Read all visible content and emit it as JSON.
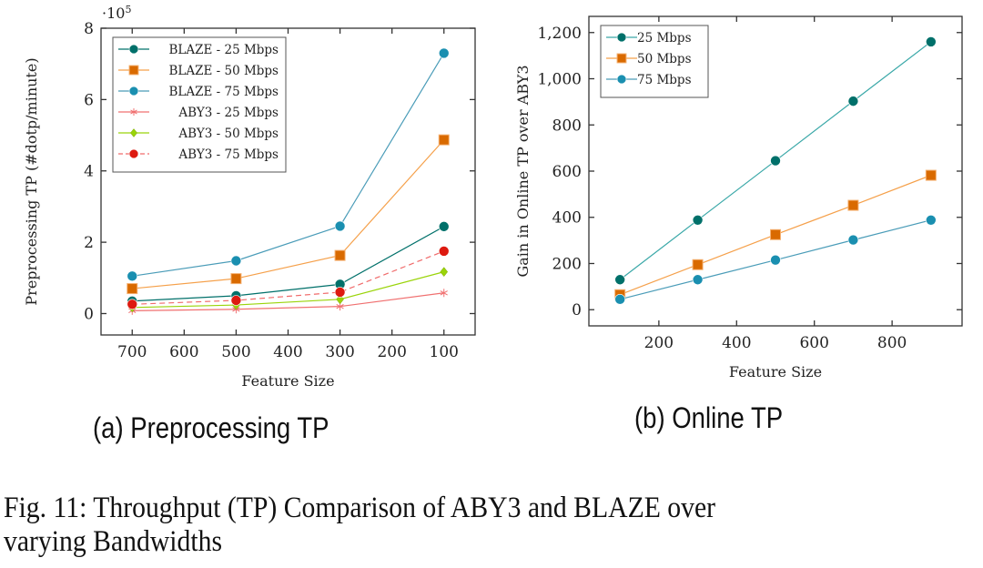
{
  "chart_data": [
    {
      "type": "line",
      "title": "",
      "xlabel": "Feature Size",
      "ylabel": "Preprocessing TP (#dotp/minute)",
      "y_multiplier_label": "·10^5",
      "y_multiplier_base": "·10",
      "y_multiplier_exp": "5",
      "x": [
        700,
        500,
        300,
        100
      ],
      "x_reversed": true,
      "xlim": [
        760,
        40
      ],
      "xticks": [
        700,
        600,
        500,
        400,
        300,
        200,
        100
      ],
      "ylim": [
        -0.6,
        8
      ],
      "yticks": [
        0,
        2,
        4,
        6,
        8
      ],
      "grid": false,
      "legend_position": "top-left",
      "series": [
        {
          "name": "BLAZE - 25 Mbps",
          "color": "#00706a",
          "marker": "circle",
          "dash": false,
          "values": [
            0.35,
            0.5,
            0.82,
            2.44
          ]
        },
        {
          "name": "BLAZE - 50 Mbps",
          "color": "#d96a00",
          "line_color": "#f5a04a",
          "marker": "square",
          "dash": false,
          "values": [
            0.7,
            0.98,
            1.63,
            4.87
          ]
        },
        {
          "name": "BLAZE - 75 Mbps",
          "color": "#1a8fb0",
          "line_color": "#4a9cb8",
          "marker": "circle",
          "dash": false,
          "values": [
            1.05,
            1.48,
            2.45,
            7.3
          ]
        },
        {
          "name": "ABY3 - 25 Mbps",
          "color": "#f07070",
          "marker": "star",
          "dash": false,
          "values": [
            0.08,
            0.12,
            0.2,
            0.58
          ]
        },
        {
          "name": "ABY3 - 50 Mbps",
          "color": "#9ad40a",
          "marker": "diamond",
          "dash": false,
          "values": [
            0.17,
            0.24,
            0.4,
            1.17
          ]
        },
        {
          "name": "ABY3 - 75 Mbps",
          "color": "#dd1a10",
          "line_color": "#f06a6a",
          "marker": "circle",
          "dash": true,
          "values": [
            0.26,
            0.37,
            0.6,
            1.75
          ]
        }
      ],
      "caption": "(a) Preprocessing TP"
    },
    {
      "type": "line",
      "title": "",
      "xlabel": "Feature Size",
      "ylabel": "Gain in Online TP over ABY3",
      "x": [
        100,
        300,
        500,
        700,
        900
      ],
      "xlim": [
        20,
        980
      ],
      "xticks": [
        200,
        400,
        600,
        800
      ],
      "ylim": [
        -70,
        1270
      ],
      "yticks": [
        0,
        200,
        400,
        600,
        800,
        1000,
        1200
      ],
      "ytick_labels": [
        "0",
        "200",
        "400",
        "600",
        "800",
        "1,000",
        "1,200"
      ],
      "grid": false,
      "legend_position": "top-left",
      "series": [
        {
          "name": "25 Mbps",
          "color": "#00706a",
          "line_color": "#3aa8a8",
          "marker": "circle",
          "dash": false,
          "values": [
            130,
            388,
            645,
            903,
            1160
          ]
        },
        {
          "name": "50 Mbps",
          "color": "#d96a00",
          "line_color": "#f5a04a",
          "marker": "square",
          "dash": false,
          "values": [
            65,
            195,
            325,
            452,
            582
          ]
        },
        {
          "name": "75 Mbps",
          "color": "#1a8fb0",
          "line_color": "#4a9cb8",
          "marker": "circle",
          "dash": false,
          "values": [
            45,
            130,
            215,
            302,
            388
          ]
        }
      ],
      "caption": "(b) Online TP"
    }
  ],
  "figure_caption": {
    "line1": "Fig. 11: Throughput (TP) Comparison of ABY3 and BLAZE over",
    "line2": "varying Bandwidths"
  }
}
